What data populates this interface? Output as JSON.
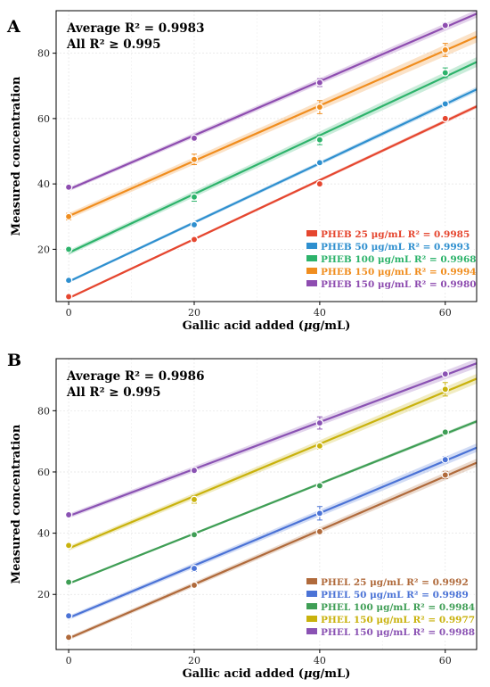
{
  "chart_data": [
    {
      "type": "line",
      "panel": "A",
      "annotation": [
        "Average R² = 0.9983",
        "All R² ≥ 0.995"
      ],
      "xlabel_parts": [
        "Gallic acid added (",
        "μ",
        "g/mL)"
      ],
      "ylabel": "Measured concentration",
      "xlim": [
        -2,
        65
      ],
      "ylim": [
        4,
        93
      ],
      "xticks": [
        0,
        20,
        40,
        60
      ],
      "yticks": [
        20,
        40,
        60,
        80
      ],
      "grid": true,
      "legend_position": "bottom-right",
      "x": [
        0,
        20,
        40,
        60
      ],
      "series": [
        {
          "name": "PHEB 25 μg/mL R² = 0.9985",
          "color": "#e5462f",
          "values": [
            5.5,
            23,
            40,
            60
          ],
          "err": [
            0.5,
            0.6,
            0.6,
            0.6
          ],
          "band": 0.6
        },
        {
          "name": "PHEB 50 μg/mL R² = 0.9993",
          "color": "#2e8fcf",
          "values": [
            10.5,
            27.5,
            46.5,
            64.5
          ],
          "err": [
            0.5,
            0.7,
            0.6,
            0.7
          ],
          "band": 0.8
        },
        {
          "name": "PHEB 100 μg/mL R² = 0.9968",
          "color": "#2db36b",
          "values": [
            20,
            36,
            53.5,
            74
          ],
          "err": [
            0.8,
            1.3,
            1.5,
            1.5
          ],
          "band": 1.5
        },
        {
          "name": "PHEB 150 μg/mL R² = 0.9994",
          "color": "#f08d1e",
          "values": [
            30,
            47.5,
            63.5,
            81
          ],
          "err": [
            1,
            1.6,
            2,
            2
          ],
          "band": 1.8
        },
        {
          "name": "PHEB 150 μg/mL R² = 0.9980",
          "color": "#8e4db0",
          "values": [
            39,
            54,
            71,
            88.5
          ],
          "err": [
            0.5,
            0.8,
            1.2,
            0.8
          ],
          "band": 1.2
        }
      ]
    },
    {
      "type": "line",
      "panel": "B",
      "annotation": [
        "Average R² = 0.9986",
        "All R² ≥ 0.995"
      ],
      "xlabel_parts": [
        "Gallic acid added (",
        "μ",
        "g/mL)"
      ],
      "ylabel": "Measured concentration",
      "xlim": [
        -2,
        65
      ],
      "ylim": [
        2,
        97
      ],
      "xticks": [
        0,
        20,
        40,
        60
      ],
      "yticks": [
        20,
        40,
        60,
        80
      ],
      "grid": true,
      "legend_position": "bottom-right",
      "x": [
        0,
        20,
        40,
        60
      ],
      "series": [
        {
          "name": "PHEL 25 μg/mL R² = 0.9992",
          "color": "#b06a3b",
          "values": [
            6,
            23,
            40.5,
            59
          ],
          "err": [
            0.5,
            0.6,
            0.8,
            1.2
          ],
          "band": 1.3
        },
        {
          "name": "PHEL 50 μg/mL R² = 0.9989",
          "color": "#4b73d6",
          "values": [
            13,
            28.5,
            46.5,
            64
          ],
          "err": [
            0.5,
            1,
            2.2,
            1
          ],
          "band": 1.4
        },
        {
          "name": "PHEL 100 μg/mL R² = 0.9984",
          "color": "#3f9e55",
          "values": [
            24,
            39.5,
            55.5,
            73
          ],
          "err": [
            0.4,
            0.5,
            0.8,
            0.5
          ],
          "band": 0.6
        },
        {
          "name": "PHEL 150 μg/mL R² = 0.9977",
          "color": "#c9b20d",
          "values": [
            36,
            51,
            68.5,
            87
          ],
          "err": [
            0.6,
            1.2,
            1,
            2.2
          ],
          "band": 1.6
        },
        {
          "name": "PHEL 150 μg/mL R² = 0.9988",
          "color": "#8a52b3",
          "values": [
            46,
            60.5,
            76,
            92
          ],
          "err": [
            0.5,
            0.8,
            2,
            0.8
          ],
          "band": 1.5
        }
      ]
    }
  ]
}
